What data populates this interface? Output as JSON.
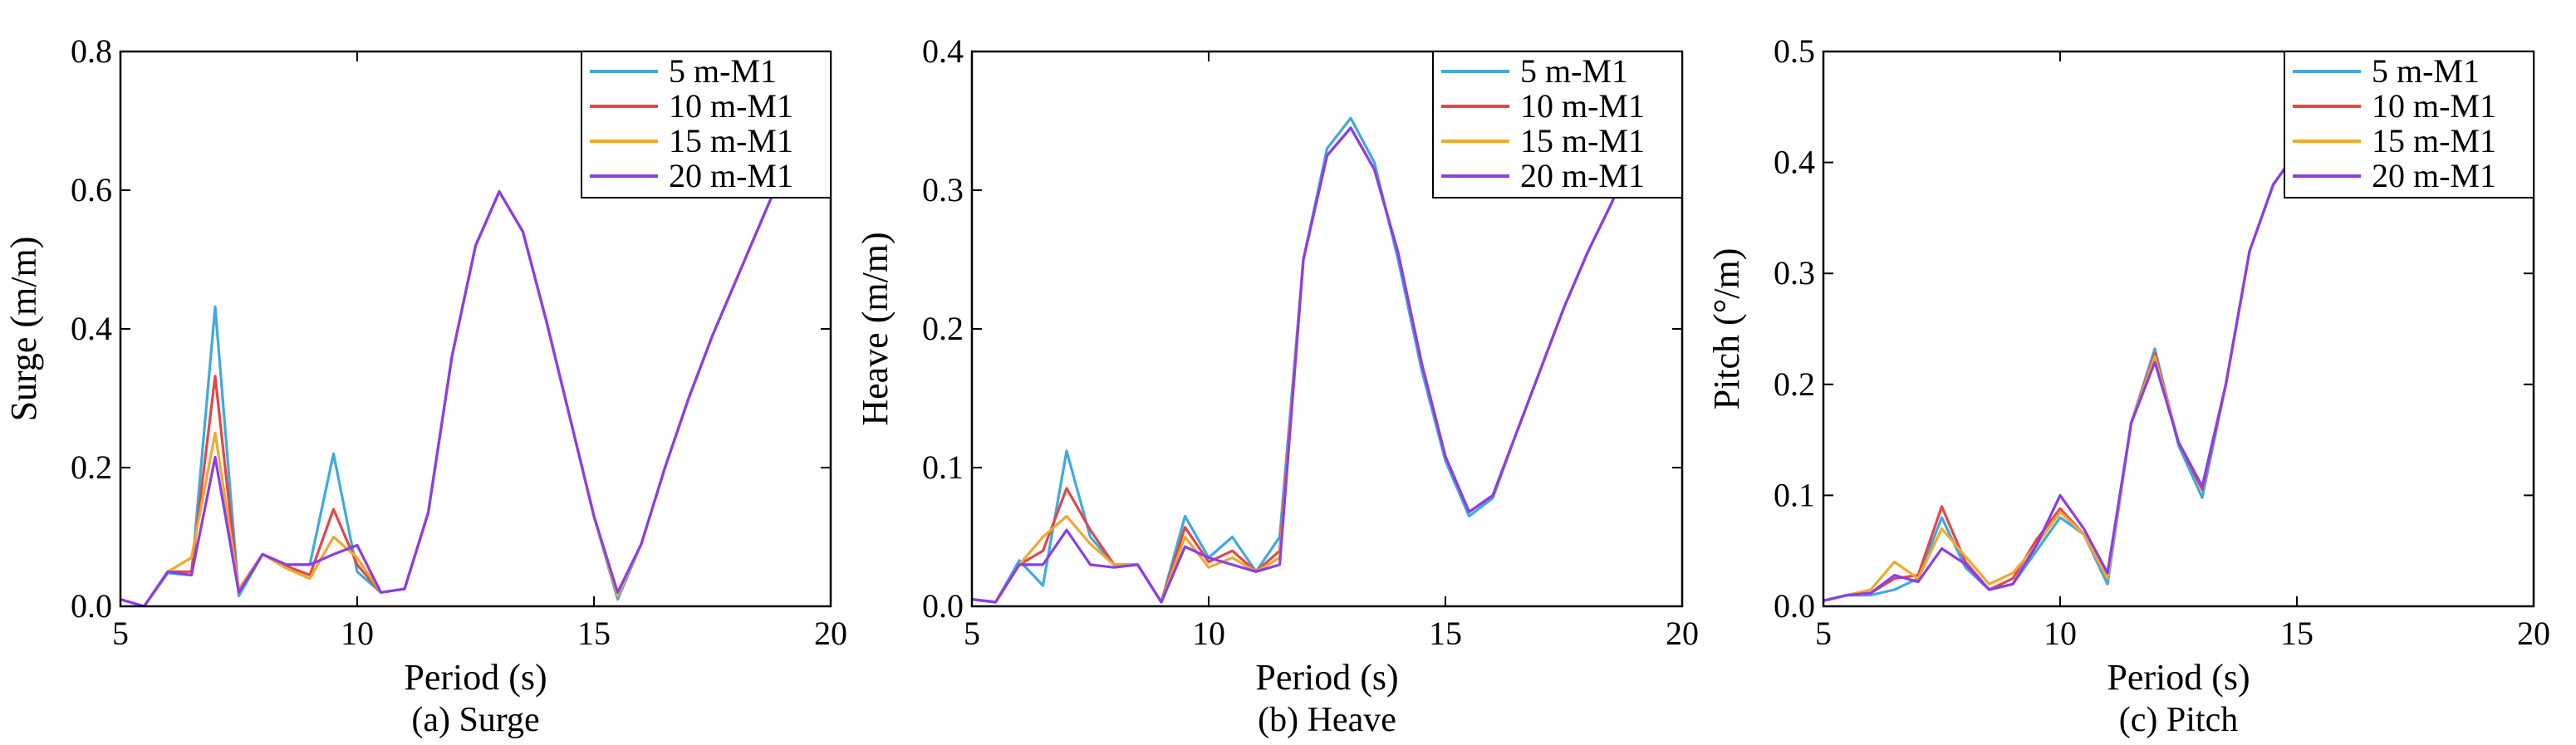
{
  "series_colors": [
    "#3FA9E0",
    "#E04848",
    "#F0A830",
    "#8A3EE8"
  ],
  "chart_data": [
    {
      "type": "line",
      "caption": "(a) Surge",
      "xlabel": "Period (s)",
      "ylabel": "Surge (m/m)",
      "xlim": [
        5,
        20
      ],
      "ylim": [
        0,
        0.8
      ],
      "xticks": [
        5,
        10,
        15,
        20
      ],
      "yticks": [
        0.0,
        0.2,
        0.4,
        0.6,
        0.8
      ],
      "ytick_labels": [
        "0.0",
        "0.2",
        "0.4",
        "0.6",
        "0.8"
      ],
      "legend_position": "top-right",
      "series": [
        {
          "name": "5 m-M1",
          "x": [
            5,
            5.5,
            6,
            6.5,
            7,
            7.5,
            8,
            8.5,
            9,
            9.5,
            10,
            10.5,
            11,
            11.5,
            12,
            12.5,
            13,
            13.5,
            14,
            14.5,
            15,
            15.5,
            16,
            16.5,
            17,
            17.5,
            18,
            18.5,
            19,
            19.5,
            20
          ],
          "y": [
            0.01,
            0.0,
            0.048,
            0.045,
            0.432,
            0.015,
            0.075,
            0.06,
            0.06,
            0.22,
            0.05,
            0.02,
            0.025,
            0.135,
            0.36,
            0.52,
            0.598,
            0.54,
            0.41,
            0.27,
            0.13,
            0.01,
            0.09,
            0.2,
            0.3,
            0.39,
            0.47,
            0.55,
            0.63,
            0.72,
            0.8
          ]
        },
        {
          "name": "10 m-M1",
          "x": [
            5,
            5.5,
            6,
            6.5,
            7,
            7.5,
            8,
            8.5,
            9,
            9.5,
            10,
            10.5,
            11,
            11.5,
            12,
            12.5,
            13,
            13.5,
            14,
            14.5,
            15,
            15.5,
            16,
            16.5,
            17,
            17.5,
            18,
            18.5,
            19,
            19.5,
            20
          ],
          "y": [
            0.01,
            0.0,
            0.05,
            0.05,
            0.332,
            0.02,
            0.075,
            0.058,
            0.045,
            0.14,
            0.06,
            0.02,
            0.025,
            0.135,
            0.36,
            0.52,
            0.598,
            0.54,
            0.41,
            0.27,
            0.13,
            0.015,
            0.09,
            0.2,
            0.3,
            0.39,
            0.47,
            0.55,
            0.63,
            0.72,
            0.8
          ]
        },
        {
          "name": "15 m-M1",
          "x": [
            5,
            5.5,
            6,
            6.5,
            7,
            7.5,
            8,
            8.5,
            9,
            9.5,
            10,
            10.5,
            11,
            11.5,
            12,
            12.5,
            13,
            13.5,
            14,
            14.5,
            15,
            15.5,
            16,
            16.5,
            17,
            17.5,
            18,
            18.5,
            19,
            19.5,
            20
          ],
          "y": [
            0.01,
            0.0,
            0.05,
            0.07,
            0.25,
            0.025,
            0.075,
            0.055,
            0.04,
            0.1,
            0.07,
            0.02,
            0.025,
            0.135,
            0.36,
            0.52,
            0.598,
            0.54,
            0.41,
            0.27,
            0.13,
            0.015,
            0.09,
            0.2,
            0.3,
            0.39,
            0.47,
            0.55,
            0.63,
            0.72,
            0.8
          ]
        },
        {
          "name": "20 m-M1",
          "x": [
            5,
            5.5,
            6,
            6.5,
            7,
            7.5,
            8,
            8.5,
            9,
            9.5,
            10,
            10.5,
            11,
            11.5,
            12,
            12.5,
            13,
            13.5,
            14,
            14.5,
            15,
            15.5,
            16,
            16.5,
            17,
            17.5,
            18,
            18.5,
            19,
            19.5,
            20
          ],
          "y": [
            0.01,
            0.0,
            0.05,
            0.045,
            0.215,
            0.02,
            0.075,
            0.06,
            0.06,
            0.075,
            0.088,
            0.02,
            0.025,
            0.135,
            0.36,
            0.52,
            0.598,
            0.54,
            0.41,
            0.27,
            0.13,
            0.02,
            0.09,
            0.2,
            0.3,
            0.39,
            0.47,
            0.55,
            0.63,
            0.72,
            0.8
          ]
        }
      ]
    },
    {
      "type": "line",
      "caption": "(b) Heave",
      "xlabel": "Period (s)",
      "ylabel": "Heave (m/m)",
      "xlim": [
        5,
        20
      ],
      "ylim": [
        0,
        0.4
      ],
      "xticks": [
        5,
        10,
        15,
        20
      ],
      "yticks": [
        0.0,
        0.1,
        0.2,
        0.3,
        0.4
      ],
      "ytick_labels": [
        "0.0",
        "0.1",
        "0.2",
        "0.3",
        "0.4"
      ],
      "legend_position": "top-right",
      "series": [
        {
          "name": "5 m-M1",
          "x": [
            5,
            5.5,
            6,
            6.5,
            7,
            7.5,
            8,
            8.5,
            9,
            9.5,
            10,
            10.5,
            11,
            11.5,
            12,
            12.5,
            13,
            13.5,
            14,
            14.5,
            15,
            15.5,
            16,
            16.5,
            17,
            17.5,
            18,
            18.5,
            19,
            19.5,
            20
          ],
          "y": [
            0.005,
            0.003,
            0.033,
            0.015,
            0.112,
            0.05,
            0.03,
            0.03,
            0.003,
            0.065,
            0.035,
            0.05,
            0.025,
            0.05,
            0.25,
            0.33,
            0.352,
            0.32,
            0.25,
            0.17,
            0.105,
            0.065,
            0.078,
            0.125,
            0.17,
            0.215,
            0.255,
            0.29,
            0.33,
            0.365,
            0.4
          ]
        },
        {
          "name": "10 m-M1",
          "x": [
            5,
            5.5,
            6,
            6.5,
            7,
            7.5,
            8,
            8.5,
            9,
            9.5,
            10,
            10.5,
            11,
            11.5,
            12,
            12.5,
            13,
            13.5,
            14,
            14.5,
            15,
            15.5,
            16,
            16.5,
            17,
            17.5,
            18,
            18.5,
            19,
            19.5,
            20
          ],
          "y": [
            0.005,
            0.003,
            0.03,
            0.04,
            0.085,
            0.055,
            0.03,
            0.03,
            0.003,
            0.057,
            0.032,
            0.04,
            0.025,
            0.04,
            0.25,
            0.325,
            0.345,
            0.315,
            0.255,
            0.175,
            0.108,
            0.068,
            0.08,
            0.125,
            0.17,
            0.215,
            0.255,
            0.29,
            0.33,
            0.365,
            0.4
          ]
        },
        {
          "name": "15 m-M1",
          "x": [
            5,
            5.5,
            6,
            6.5,
            7,
            7.5,
            8,
            8.5,
            9,
            9.5,
            10,
            10.5,
            11,
            11.5,
            12,
            12.5,
            13,
            13.5,
            14,
            14.5,
            15,
            15.5,
            16,
            16.5,
            17,
            17.5,
            18,
            18.5,
            19,
            19.5,
            20
          ],
          "y": [
            0.005,
            0.003,
            0.03,
            0.05,
            0.065,
            0.045,
            0.03,
            0.03,
            0.003,
            0.05,
            0.028,
            0.035,
            0.025,
            0.035,
            0.25,
            0.325,
            0.345,
            0.315,
            0.255,
            0.175,
            0.108,
            0.068,
            0.08,
            0.125,
            0.17,
            0.215,
            0.255,
            0.29,
            0.33,
            0.365,
            0.4
          ]
        },
        {
          "name": "20 m-M1",
          "x": [
            5,
            5.5,
            6,
            6.5,
            7,
            7.5,
            8,
            8.5,
            9,
            9.5,
            10,
            10.5,
            11,
            11.5,
            12,
            12.5,
            13,
            13.5,
            14,
            14.5,
            15,
            15.5,
            16,
            16.5,
            17,
            17.5,
            18,
            18.5,
            19,
            19.5,
            20
          ],
          "y": [
            0.005,
            0.003,
            0.03,
            0.03,
            0.055,
            0.03,
            0.028,
            0.03,
            0.003,
            0.043,
            0.035,
            0.03,
            0.025,
            0.03,
            0.25,
            0.325,
            0.345,
            0.315,
            0.255,
            0.175,
            0.108,
            0.068,
            0.08,
            0.125,
            0.17,
            0.215,
            0.255,
            0.29,
            0.33,
            0.365,
            0.4
          ]
        }
      ]
    },
    {
      "type": "line",
      "caption": "(c) Pitch",
      "xlabel": "Period (s)",
      "ylabel": "Pitch (°/m)",
      "xlim": [
        5,
        20
      ],
      "ylim": [
        0,
        0.5
      ],
      "xticks": [
        5,
        10,
        15,
        20
      ],
      "yticks": [
        0.0,
        0.1,
        0.2,
        0.3,
        0.4,
        0.5
      ],
      "ytick_labels": [
        "0.0",
        "0.1",
        "0.2",
        "0.3",
        "0.4",
        "0.5"
      ],
      "legend_position": "top-right",
      "series": [
        {
          "name": "5 m-M1",
          "x": [
            5,
            5.5,
            6,
            6.5,
            7,
            7.5,
            8,
            8.5,
            9,
            9.5,
            10,
            10.5,
            11,
            11.5,
            12,
            12.5,
            13,
            13.5,
            14,
            14.5,
            15,
            15.5,
            16,
            16.5,
            17,
            17.5,
            18,
            18.5,
            19,
            19.5,
            20
          ],
          "y": [
            0.005,
            0.01,
            0.01,
            0.015,
            0.025,
            0.08,
            0.035,
            0.015,
            0.02,
            0.05,
            0.08,
            0.065,
            0.02,
            0.165,
            0.232,
            0.145,
            0.098,
            0.2,
            0.32,
            0.38,
            0.41,
            0.43,
            0.445,
            0.455,
            0.465,
            0.47,
            0.478,
            0.485,
            0.49,
            0.495,
            0.5
          ]
        },
        {
          "name": "10 m-M1",
          "x": [
            5,
            5.5,
            6,
            6.5,
            7,
            7.5,
            8,
            8.5,
            9,
            9.5,
            10,
            10.5,
            11,
            11.5,
            12,
            12.5,
            13,
            13.5,
            14,
            14.5,
            15,
            15.5,
            16,
            16.5,
            17,
            17.5,
            18,
            18.5,
            19,
            19.5,
            20
          ],
          "y": [
            0.005,
            0.01,
            0.012,
            0.025,
            0.028,
            0.09,
            0.04,
            0.015,
            0.025,
            0.06,
            0.088,
            0.065,
            0.025,
            0.165,
            0.228,
            0.148,
            0.105,
            0.2,
            0.32,
            0.38,
            0.41,
            0.43,
            0.445,
            0.455,
            0.465,
            0.47,
            0.478,
            0.485,
            0.49,
            0.495,
            0.5
          ]
        },
        {
          "name": "15 m-M1",
          "x": [
            5,
            5.5,
            6,
            6.5,
            7,
            7.5,
            8,
            8.5,
            9,
            9.5,
            10,
            10.5,
            11,
            11.5,
            12,
            12.5,
            13,
            13.5,
            14,
            14.5,
            15,
            15.5,
            16,
            16.5,
            17,
            17.5,
            18,
            18.5,
            19,
            19.5,
            20
          ],
          "y": [
            0.005,
            0.01,
            0.015,
            0.04,
            0.025,
            0.07,
            0.045,
            0.02,
            0.03,
            0.055,
            0.085,
            0.065,
            0.025,
            0.165,
            0.225,
            0.148,
            0.108,
            0.2,
            0.32,
            0.38,
            0.41,
            0.43,
            0.445,
            0.455,
            0.465,
            0.47,
            0.478,
            0.485,
            0.49,
            0.495,
            0.5
          ]
        },
        {
          "name": "20 m-M1",
          "x": [
            5,
            5.5,
            6,
            6.5,
            7,
            7.5,
            8,
            8.5,
            9,
            9.5,
            10,
            10.5,
            11,
            11.5,
            12,
            12.5,
            13,
            13.5,
            14,
            14.5,
            15,
            15.5,
            16,
            16.5,
            17,
            17.5,
            18,
            18.5,
            19,
            19.5,
            20
          ],
          "y": [
            0.005,
            0.01,
            0.012,
            0.028,
            0.022,
            0.052,
            0.038,
            0.015,
            0.02,
            0.055,
            0.1,
            0.07,
            0.03,
            0.165,
            0.22,
            0.148,
            0.108,
            0.2,
            0.32,
            0.38,
            0.41,
            0.43,
            0.445,
            0.455,
            0.465,
            0.47,
            0.478,
            0.485,
            0.49,
            0.495,
            0.5
          ]
        }
      ]
    }
  ]
}
